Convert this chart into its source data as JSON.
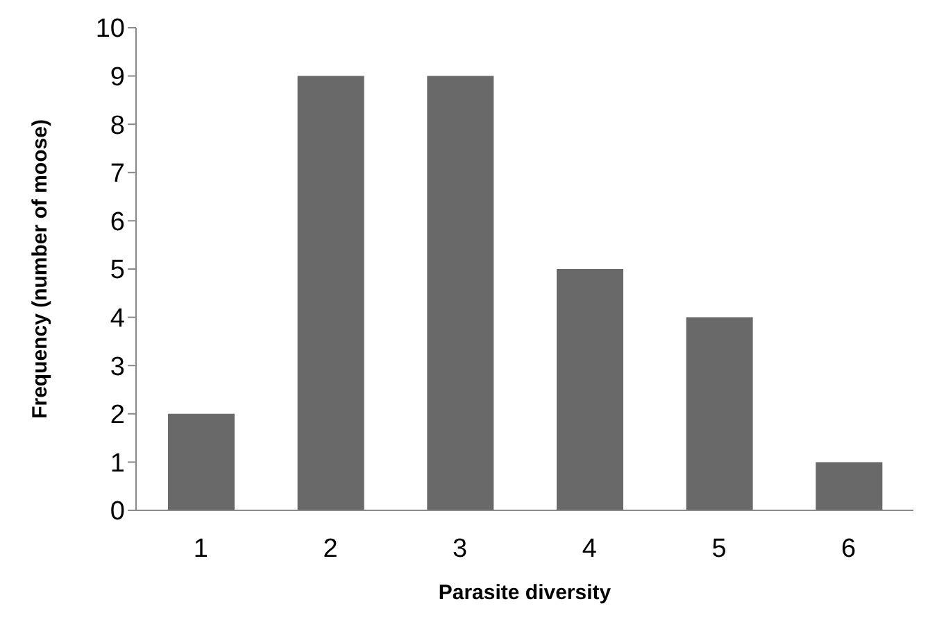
{
  "chart_data": {
    "type": "bar",
    "xlabel": "Parasite diversity",
    "ylabel": "Frequency (number of moose)",
    "categories": [
      "1",
      "2",
      "3",
      "4",
      "5",
      "6"
    ],
    "values": [
      2,
      9,
      9,
      5,
      4,
      1
    ],
    "color": "#696969",
    "ylim": [
      0,
      10
    ],
    "yticks": [
      0,
      1,
      2,
      3,
      4,
      5,
      6,
      7,
      8,
      9,
      10
    ],
    "grid": false,
    "legend": false
  }
}
